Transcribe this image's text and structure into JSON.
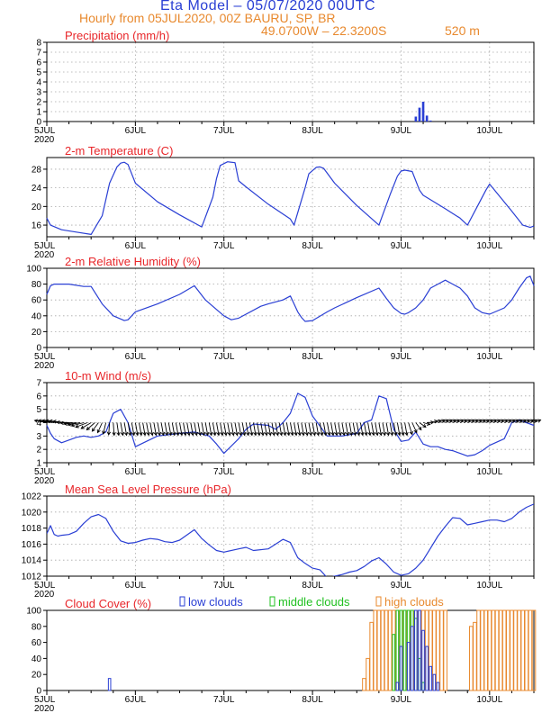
{
  "header": {
    "title": "Eta Model – 05/07/2020 00UTC",
    "hourly": "Hourly from 05JUL2020, 00Z  BAURU, SP, BR",
    "location": "49.0700W – 22.3200S",
    "elevation": "520  m"
  },
  "x_axis": {
    "start_label": "5JUL",
    "year_label": "2020",
    "day_labels": [
      "6JUL",
      "7JUL",
      "8JUL",
      "9JUL",
      "10JUL"
    ],
    "day_hours": [
      24,
      48,
      72,
      96,
      120
    ],
    "range_hours": [
      0,
      132
    ]
  },
  "colors": {
    "line": "#2a3fd4",
    "panel_title": "#e8262a",
    "orange": "#e8892e",
    "low": "#2a3fd4",
    "mid": "#20c020",
    "high": "#e8892e",
    "arrow": "#000000"
  },
  "chart_data": [
    {
      "id": "precipitation",
      "type": "bar",
      "title": "Precipitation (mm/h)",
      "ylim": [
        0,
        8
      ],
      "yticks": [
        0,
        1,
        2,
        3,
        4,
        5,
        6,
        7,
        8
      ],
      "x": [
        100,
        101,
        102,
        103,
        104
      ],
      "values": [
        0.5,
        1.4,
        2.0,
        0.6,
        0.1
      ]
    },
    {
      "id": "temperature",
      "type": "line",
      "title": "2-m Temperature (C)",
      "ylim": [
        13.5,
        30.5
      ],
      "yticks": [
        16,
        20,
        24,
        28
      ],
      "x": [
        0,
        1,
        4,
        8,
        12,
        15,
        17,
        19,
        20,
        21,
        22,
        24,
        30,
        36,
        42,
        45,
        46,
        47,
        49,
        51,
        52,
        54,
        60,
        66,
        67,
        70,
        71,
        73,
        74,
        75,
        78,
        84,
        90,
        93,
        95,
        96,
        97,
        99,
        101,
        102,
        108,
        109,
        110,
        112,
        114,
        117,
        119,
        120,
        126,
        129,
        131,
        132
      ],
      "values": [
        17.5,
        16.0,
        15.0,
        14.5,
        14.0,
        18.0,
        25.0,
        28.5,
        29.3,
        29.5,
        29.0,
        25.0,
        21.0,
        18.2,
        15.6,
        22.0,
        26.0,
        28.8,
        29.6,
        29.4,
        25.5,
        24.2,
        20.5,
        17.3,
        16.0,
        24.0,
        27.0,
        28.4,
        28.5,
        28.2,
        25.0,
        20.2,
        16.0,
        22.5,
        26.5,
        27.6,
        27.8,
        27.5,
        23.5,
        22.4,
        19.5,
        19.0,
        18.5,
        17.5,
        16.0,
        20.5,
        23.5,
        24.8,
        19.0,
        16.0,
        15.5,
        15.8
      ]
    },
    {
      "id": "humidity",
      "type": "line",
      "title": "2-m Relative Humidity (%)",
      "ylim": [
        0,
        100
      ],
      "yticks": [
        0,
        20,
        40,
        60,
        80,
        100
      ],
      "x": [
        0,
        1,
        2,
        6,
        10,
        12,
        15,
        18,
        20,
        21,
        22,
        24,
        30,
        36,
        40,
        43,
        46,
        48,
        50,
        52,
        58,
        60,
        64,
        66,
        68,
        69,
        70,
        72,
        76,
        78,
        84,
        90,
        92,
        94,
        96,
        97,
        98,
        100,
        102,
        104,
        106,
        108,
        110,
        112,
        114,
        116,
        118,
        120,
        124,
        126,
        128,
        130,
        131,
        132
      ],
      "values": [
        67,
        78,
        80,
        80,
        77,
        77,
        55,
        40,
        36,
        34,
        35,
        45,
        55,
        67,
        78,
        60,
        48,
        40,
        35,
        37,
        52,
        55,
        60,
        65,
        45,
        38,
        33,
        34,
        45,
        50,
        63,
        75,
        62,
        50,
        43,
        42,
        44,
        50,
        60,
        75,
        80,
        85,
        80,
        75,
        65,
        50,
        44,
        42,
        50,
        60,
        75,
        88,
        90,
        78
      ]
    },
    {
      "id": "wind",
      "type": "line",
      "title": "10-m Wind (m/s)",
      "ylim": [
        1,
        7
      ],
      "yticks": [
        1,
        2,
        3,
        4,
        5,
        6,
        7
      ],
      "x": [
        0,
        1,
        2,
        4,
        8,
        10,
        12,
        14,
        16,
        18,
        20,
        22,
        24,
        30,
        36,
        40,
        44,
        46,
        48,
        52,
        54,
        56,
        60,
        62,
        64,
        66,
        68,
        70,
        72,
        76,
        78,
        80,
        84,
        86,
        88,
        90,
        92,
        94,
        96,
        98,
        100,
        102,
        104,
        106,
        108,
        110,
        112,
        114,
        116,
        118,
        120,
        124,
        126,
        128,
        130,
        132
      ],
      "values": [
        3.8,
        3.2,
        2.8,
        2.5,
        2.9,
        3.0,
        2.9,
        3.0,
        3.3,
        4.7,
        5.0,
        4.0,
        2.2,
        3.0,
        3.2,
        3.3,
        3.0,
        2.4,
        1.7,
        2.8,
        3.5,
        3.9,
        3.8,
        3.5,
        4.0,
        4.7,
        6.2,
        5.9,
        4.5,
        3.0,
        3.0,
        3.0,
        3.2,
        4.0,
        4.2,
        6.0,
        5.8,
        3.5,
        2.6,
        2.7,
        3.3,
        2.4,
        2.2,
        2.2,
        2.0,
        1.9,
        1.7,
        1.5,
        1.6,
        1.9,
        2.3,
        2.8,
        4.0,
        4.2,
        4.0,
        3.8
      ]
    },
    {
      "id": "wind_vectors",
      "type": "quiver",
      "title": "",
      "x": [
        0,
        1,
        2,
        3,
        4,
        5,
        6,
        7,
        8,
        9,
        10,
        11,
        12,
        13,
        14,
        15,
        16,
        17,
        18,
        19,
        20,
        21,
        22,
        23,
        24,
        25,
        26,
        27,
        28,
        29,
        30,
        31,
        32,
        33,
        34,
        35,
        36,
        37,
        38,
        39,
        40,
        41,
        42,
        43,
        44,
        45,
        46,
        47,
        48,
        49,
        50,
        51,
        52,
        53,
        54,
        55,
        56,
        57,
        58,
        59,
        60,
        61,
        62,
        63,
        64,
        65,
        66,
        67,
        68,
        69,
        70,
        71,
        72,
        73,
        74,
        75,
        76,
        77,
        78,
        79,
        80,
        81,
        82,
        83,
        84,
        85,
        86,
        87,
        88,
        89,
        90,
        91,
        92,
        93,
        94,
        95,
        96,
        97,
        98,
        99,
        100,
        101,
        102,
        103,
        104,
        105,
        106,
        107,
        108,
        109,
        110,
        111,
        112,
        113,
        114,
        115,
        116,
        117,
        118,
        119,
        120,
        121,
        122,
        123,
        124,
        125,
        126,
        127,
        128,
        129,
        130,
        131,
        132
      ],
      "u": [
        -2.7,
        -2.7,
        -2.7,
        -2.7,
        -2.7,
        -2.7,
        -2.7,
        -2.7,
        -2.7,
        -2.7,
        -2.7,
        -2.6,
        -2.2,
        -1.8,
        -1.4,
        -1.0,
        -0.6,
        -0.2,
        0.2,
        0.4,
        0.5,
        0.5,
        0.5,
        0.5,
        0.5,
        0.5,
        0.5,
        0.5,
        0.5,
        0.5,
        0.5,
        0.5,
        0.5,
        0.5,
        0.5,
        0.5,
        0.5,
        0.5,
        0.5,
        0.5,
        0.5,
        0.5,
        0.5,
        0.5,
        0.5,
        0.5,
        0.5,
        0.5,
        0.5,
        0.5,
        0.5,
        0.5,
        0.5,
        0.5,
        0.5,
        0.5,
        0.5,
        0.5,
        0.5,
        0.5,
        0.5,
        0.5,
        0.5,
        0.5,
        0.5,
        0.5,
        0.5,
        0.5,
        0.5,
        0.5,
        0.5,
        0.5,
        0.5,
        0.5,
        0.5,
        0.5,
        0.5,
        0.5,
        0.5,
        0.5,
        0.5,
        0.5,
        0.5,
        0.5,
        0.5,
        0.5,
        0.5,
        0.5,
        0.5,
        0.5,
        0.5,
        0.5,
        0.5,
        0.5,
        0.5,
        0.5,
        0.5,
        0.5,
        0.8,
        1.0,
        1.2,
        1.4,
        1.5,
        1.5,
        1.5,
        1.5,
        1.5,
        1.5,
        1.5,
        1.5,
        1.5,
        1.5,
        1.5,
        1.5,
        1.5,
        1.5,
        1.5,
        1.5,
        1.5,
        1.5,
        1.5,
        1.5,
        1.5,
        1.5,
        1.5,
        1.5,
        1.5,
        1.5,
        1.5,
        1.5,
        1.5,
        1.5,
        1.5
      ],
      "v": [
        0.5,
        0.5,
        0.5,
        0.5,
        0.4,
        0.3,
        0.1,
        -0.1,
        -0.3,
        -0.5,
        -0.7,
        -1.0,
        -1.3,
        -1.6,
        -1.9,
        -2.2,
        -2.5,
        -2.7,
        -2.8,
        -2.8,
        -2.8,
        -2.8,
        -2.8,
        -2.8,
        -2.8,
        -2.8,
        -2.8,
        -2.8,
        -2.8,
        -2.8,
        -2.8,
        -2.8,
        -2.8,
        -2.8,
        -2.8,
        -2.8,
        -2.8,
        -2.8,
        -2.8,
        -2.8,
        -2.8,
        -2.8,
        -2.8,
        -2.8,
        -2.8,
        -2.8,
        -2.8,
        -2.8,
        -2.8,
        -2.8,
        -2.8,
        -2.8,
        -2.8,
        -2.8,
        -2.8,
        -2.8,
        -2.8,
        -2.8,
        -2.8,
        -2.8,
        -2.8,
        -2.8,
        -2.8,
        -2.8,
        -2.8,
        -2.8,
        -2.8,
        -2.8,
        -2.8,
        -2.8,
        -2.8,
        -2.8,
        -2.8,
        -2.8,
        -2.8,
        -2.8,
        -2.8,
        -2.8,
        -2.8,
        -2.8,
        -2.8,
        -2.8,
        -2.8,
        -2.8,
        -2.8,
        -2.8,
        -2.8,
        -2.8,
        -2.8,
        -2.8,
        -2.8,
        -2.8,
        -2.8,
        -2.8,
        -2.8,
        -2.8,
        -2.8,
        -2.8,
        -2.6,
        -2.2,
        -1.6,
        -1.0,
        -0.4,
        0.1,
        0.4,
        0.5,
        0.6,
        0.6,
        0.6,
        0.6,
        0.6,
        0.6,
        0.6,
        0.6,
        0.6,
        0.6,
        0.6,
        0.6,
        0.6,
        0.6,
        0.6,
        0.6,
        0.6,
        0.6,
        0.6,
        0.6,
        0.6,
        0.6,
        0.6,
        0.6,
        0.6,
        0.6,
        0.6
      ]
    },
    {
      "id": "pressure",
      "type": "line",
      "title": "Mean Sea Level Pressure (hPa)",
      "ylim": [
        1012,
        1022
      ],
      "yticks": [
        1012,
        1014,
        1016,
        1018,
        1020,
        1022
      ],
      "x": [
        0,
        1,
        2,
        3,
        4,
        6,
        8,
        10,
        12,
        14,
        16,
        18,
        20,
        22,
        24,
        26,
        28,
        30,
        32,
        34,
        36,
        40,
        42,
        44,
        46,
        48,
        52,
        54,
        56,
        60,
        64,
        66,
        68,
        70,
        72,
        74,
        76,
        80,
        82,
        84,
        86,
        88,
        90,
        92,
        94,
        96,
        98,
        100,
        102,
        104,
        106,
        108,
        110,
        112,
        114,
        116,
        118,
        120,
        122,
        124,
        126,
        128,
        130,
        132
      ],
      "values": [
        1017.3,
        1018.3,
        1017.2,
        1017.0,
        1017.1,
        1017.2,
        1017.6,
        1018.6,
        1019.4,
        1019.7,
        1019.2,
        1017.6,
        1016.4,
        1016.1,
        1016.2,
        1016.5,
        1016.7,
        1016.6,
        1016.3,
        1016.2,
        1016.5,
        1017.8,
        1016.7,
        1015.9,
        1015.2,
        1015.0,
        1015.4,
        1015.6,
        1015.2,
        1015.4,
        1016.6,
        1016.2,
        1014.3,
        1013.6,
        1013.0,
        1012.8,
        1011.8,
        1012.2,
        1012.5,
        1012.7,
        1013.2,
        1013.9,
        1014.3,
        1013.5,
        1012.5,
        1012.1,
        1012.3,
        1013.0,
        1014.0,
        1015.5,
        1017.0,
        1018.2,
        1019.3,
        1019.2,
        1018.4,
        1018.6,
        1018.8,
        1019.0,
        1019.0,
        1018.8,
        1019.2,
        1020.0,
        1020.6,
        1021.0
      ]
    },
    {
      "id": "clouds",
      "type": "bar",
      "title": "Cloud Cover (%)",
      "legend": [
        "low clouds",
        "middle clouds",
        "high clouds"
      ],
      "ylim": [
        0,
        100
      ],
      "yticks": [
        0,
        20,
        40,
        60,
        80,
        100
      ],
      "series": [
        {
          "name": "low clouds",
          "x": [
            17,
            95,
            96,
            98,
            99,
            100,
            101,
            102,
            103,
            104,
            105,
            106
          ],
          "values": [
            15,
            10,
            55,
            60,
            80,
            100,
            100,
            75,
            55,
            30,
            20,
            10
          ]
        },
        {
          "name": "middle clouds",
          "x": [
            94,
            95,
            96,
            97,
            98,
            99,
            100,
            101,
            102
          ],
          "values": [
            70,
            100,
            100,
            100,
            100,
            100,
            90,
            40,
            10
          ]
        },
        {
          "name": "high clouds",
          "x": [
            86,
            87,
            88,
            89,
            90,
            91,
            92,
            93,
            94,
            95,
            96,
            97,
            98,
            99,
            100,
            101,
            102,
            103,
            104,
            105,
            106,
            107,
            108,
            115,
            116,
            117,
            118,
            119,
            120,
            121,
            122,
            123,
            124,
            125,
            126,
            127,
            128,
            129,
            130,
            131,
            132
          ],
          "values": [
            15,
            40,
            85,
            100,
            100,
            100,
            100,
            100,
            100,
            100,
            100,
            100,
            100,
            100,
            100,
            100,
            100,
            100,
            100,
            100,
            100,
            100,
            100,
            80,
            85,
            100,
            100,
            100,
            100,
            100,
            100,
            100,
            100,
            100,
            100,
            100,
            100,
            100,
            100,
            100,
            100
          ]
        }
      ]
    }
  ]
}
